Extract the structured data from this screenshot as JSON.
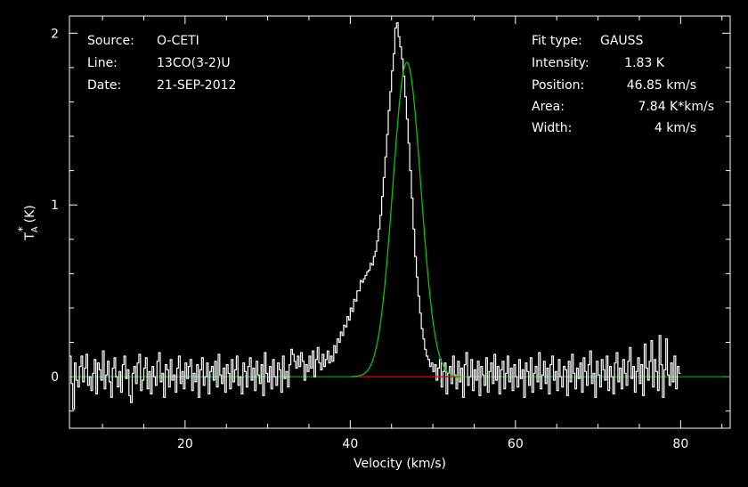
{
  "chart_data": {
    "type": "line",
    "xlabel": "Velocity (km/s)",
    "ylabel": "T",
    "ylabel_sup": "*",
    "ylabel_sub": "A",
    "ylabel_unit": "(K)",
    "xlim": [
      6,
      86
    ],
    "ylim": [
      -0.3,
      2.1
    ],
    "xticks": [
      20,
      40,
      60,
      80
    ],
    "yticks": [
      0,
      1,
      2
    ],
    "info_left": [
      {
        "key": "Source:",
        "value": "O-CETI"
      },
      {
        "key": "Line:",
        "value": "13CO(3-2)U"
      },
      {
        "key": "Date:",
        "value": "21-SEP-2012"
      }
    ],
    "fit_type_label": "Fit type:",
    "fit_type": "GAUSS",
    "info_right": [
      {
        "key": "Intensity:",
        "value": "1.83 K"
      },
      {
        "key": "Position:",
        "value": "46.85 km/s"
      },
      {
        "key": "Area:",
        "value": "7.84 K*km/s"
      },
      {
        "key": "Width:",
        "value": "4 km/s"
      }
    ],
    "gaussian": {
      "amplitude": 1.83,
      "center": 46.85,
      "fwhm": 4
    },
    "baseline_range": [
      40.0,
      53.4
    ],
    "spectrum": {
      "x_start": 6.0,
      "x_step": 0.2,
      "y": [
        0.12,
        -0.04,
        -0.19,
        0.08,
        -0.02,
        -0.06,
        0.06,
        0.12,
        -0.03,
        0.05,
        0.13,
        -0.05,
        0.0,
        -0.08,
        0.02,
        0.1,
        -0.1,
        0.08,
        0.04,
        -0.02,
        0.15,
        -0.07,
        0.01,
        0.09,
        -0.03,
        -0.12,
        0.05,
        0.11,
        0.0,
        -0.06,
        0.03,
        -0.09,
        0.07,
        0.12,
        -0.01,
        0.04,
        -0.11,
        -0.15,
        0.02,
        0.06,
        -0.04,
        0.08,
        0.13,
        -0.08,
        -0.02,
        0.05,
        0.11,
        -0.07,
        0.03,
        -0.1,
        0.06,
        0.0,
        -0.05,
        0.09,
        0.14,
        -0.03,
        0.02,
        -0.12,
        0.07,
        0.04,
        -0.06,
        0.1,
        -0.02,
        0.01,
        -0.09,
        0.05,
        0.12,
        -0.04,
        0.03,
        -0.07,
        0.08,
        -0.01,
        0.06,
        0.1,
        -0.08,
        0.02,
        -0.03,
        0.07,
        -0.12,
        0.04,
        0.11,
        -0.05,
        0.0,
        0.08,
        -0.1,
        0.03,
        0.06,
        -0.02,
        0.09,
        -0.06,
        0.13,
        0.01,
        -0.04,
        0.05,
        -0.09,
        0.07,
        0.02,
        -0.07,
        0.1,
        -0.03,
        0.04,
        0.12,
        -0.05,
        0.0,
        -0.1,
        0.08,
        0.03,
        -0.06,
        0.06,
        0.11,
        -0.02,
        0.05,
        -0.08,
        0.09,
        0.01,
        -0.04,
        0.07,
        -0.11,
        0.14,
        0.02,
        -0.03,
        0.06,
        -0.07,
        0.1,
        0.0,
        -0.05,
        0.08,
        0.04,
        -0.09,
        0.12,
        -0.01,
        0.03,
        -0.06,
        0.07,
        0.16,
        0.13,
        0.09,
        0.05,
        0.12,
        0.06,
        0.14,
        0.09,
        -0.02,
        0.07,
        0.03,
        0.12,
        0.05,
        0.15,
        0.0,
        0.1,
        0.17,
        0.08,
        0.04,
        0.13,
        0.06,
        0.1,
        0.15,
        0.08,
        0.12,
        0.09,
        0.18,
        0.14,
        0.22,
        0.2,
        0.26,
        0.24,
        0.3,
        0.29,
        0.35,
        0.33,
        0.4,
        0.38,
        0.45,
        0.44,
        0.5,
        0.5,
        0.56,
        0.55,
        0.57,
        0.59,
        0.61,
        0.62,
        0.66,
        0.65,
        0.7,
        0.73,
        0.79,
        0.86,
        0.94,
        1.05,
        1.16,
        1.28,
        1.41,
        1.55,
        1.66,
        1.78,
        1.88,
        2.03,
        2.06,
        1.98,
        1.92,
        1.85,
        1.75,
        1.63,
        1.5,
        1.36,
        1.2,
        1.04,
        0.86,
        0.7,
        0.58,
        0.47,
        0.37,
        0.28,
        0.22,
        0.16,
        0.12,
        0.1,
        0.06,
        0.08,
        0.03,
        0.07,
        -0.02,
        0.05,
        0.1,
        -0.06,
        0.03,
        0.08,
        -0.1,
        0.02,
        0.06,
        -0.04,
        0.12,
        0.01,
        -0.07,
        0.09,
        -0.03,
        0.05,
        -0.12,
        0.07,
        0.14,
        -0.05,
        0.0,
        0.1,
        -0.08,
        0.04,
        -0.02,
        0.09,
        -0.11,
        0.06,
        0.01,
        -0.05,
        0.11,
        -0.09,
        0.03,
        0.08,
        -0.04,
        0.13,
        -0.02,
        0.06,
        -0.1,
        0.04,
        0.09,
        -0.07,
        0.02,
        0.12,
        -0.03,
        0.05,
        -0.08,
        0.07,
        0.0,
        -0.06,
        0.1,
        -0.01,
        0.04,
        -0.12,
        0.08,
        0.03,
        -0.05,
        0.11,
        -0.09,
        0.02,
        0.06,
        -0.03,
        0.14,
        -0.07,
        0.01,
        0.09,
        -0.04,
        0.05,
        -0.1,
        0.07,
        0.12,
        -0.02,
        0.03,
        -0.08,
        0.1,
        0.0,
        -0.06,
        0.06,
        0.04,
        -0.11,
        0.09,
        -0.03,
        0.13,
        0.02,
        -0.07,
        0.05,
        -0.01,
        0.08,
        -0.09,
        0.11,
        0.03,
        -0.05,
        0.07,
        0.15,
        -0.04,
        0.02,
        -0.12,
        0.09,
        0.01,
        -0.06,
        0.1,
        0.04,
        -0.02,
        0.12,
        -0.08,
        0.06,
        0.0,
        -0.1,
        0.08,
        0.14,
        -0.03,
        0.05,
        -0.07,
        0.1,
        0.02,
        -0.05,
        0.09,
        0.17,
        -0.01,
        0.06,
        -0.09,
        0.03,
        0.11,
        -0.04,
        0.07,
        -0.11,
        0.19,
        0.05,
        -0.02,
        0.09,
        0.21,
        -0.06,
        0.1,
        0.03,
        -0.08,
        0.24,
        0.07,
        -0.12,
        0.04,
        0.22,
        0.01,
        -0.05,
        0.08,
        -0.03,
        0.12,
        -0.07,
        0.06,
        0.02
      ]
    },
    "colors": {
      "background": "#000000",
      "axes": "#ffffff",
      "spectrum": "#ffffff",
      "fit": "#00c800",
      "baseline": "#e00000"
    }
  }
}
